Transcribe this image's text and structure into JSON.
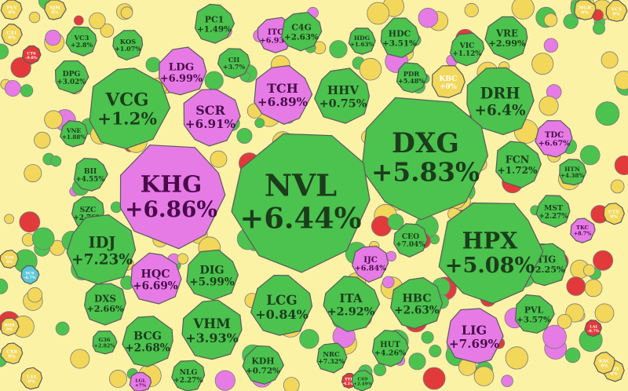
{
  "colors": {
    "background": "#fbf2a6",
    "up": "#4cc24f",
    "ceiling": "#e67be6",
    "flat": "#f2d75a",
    "down": "#e23a3a",
    "floor": "#5bc8d8",
    "text_up": "#1b3d1b",
    "text_ceiling": "#4a0a4a",
    "text_flat": "#ffffff"
  },
  "chart_data": {
    "type": "heatmap",
    "layout": "voronoi-treemap",
    "title": "",
    "legend": "none",
    "cells": [
      {
        "symbol": "NVL",
        "change": "+6.44%",
        "value": 6.44,
        "status": "up"
      },
      {
        "symbol": "DXG",
        "change": "+5.83%",
        "value": 5.83,
        "status": "up"
      },
      {
        "symbol": "KHG",
        "change": "+6.86%",
        "value": 6.86,
        "status": "ceiling"
      },
      {
        "symbol": "HPX",
        "change": "+5.08%",
        "value": 5.08,
        "status": "up"
      },
      {
        "symbol": "VCG",
        "change": "+1.2%",
        "value": 1.2,
        "status": "up"
      },
      {
        "symbol": "DRH",
        "change": "+6.4%",
        "value": 6.4,
        "status": "up"
      },
      {
        "symbol": "IDJ",
        "change": "+7.23%",
        "value": 7.23,
        "status": "up"
      },
      {
        "symbol": "LCG",
        "change": "+0.84%",
        "value": 0.84,
        "status": "up"
      },
      {
        "symbol": "VHM",
        "change": "+3.93%",
        "value": 3.93,
        "status": "up"
      },
      {
        "symbol": "DIG",
        "change": "+5.99%",
        "value": 5.99,
        "status": "up"
      },
      {
        "symbol": "HQC",
        "change": "+6.69%",
        "value": 6.69,
        "status": "ceiling"
      },
      {
        "symbol": "SCR",
        "change": "+6.91%",
        "value": 6.91,
        "status": "ceiling"
      },
      {
        "symbol": "TCH",
        "change": "+6.89%",
        "value": 6.89,
        "status": "ceiling"
      },
      {
        "symbol": "LDG",
        "change": "+6.99%",
        "value": 6.99,
        "status": "ceiling"
      },
      {
        "symbol": "HHV",
        "change": "+0.75%",
        "value": 0.75,
        "status": "up"
      },
      {
        "symbol": "LIG",
        "change": "+7.69%",
        "value": 7.69,
        "status": "ceiling"
      },
      {
        "symbol": "ITA",
        "change": "+2.92%",
        "value": 2.92,
        "status": "up"
      },
      {
        "symbol": "HBC",
        "change": "+2.63%",
        "value": 2.63,
        "status": "up"
      },
      {
        "symbol": "BCG",
        "change": "+2.68%",
        "value": 2.68,
        "status": "up"
      },
      {
        "symbol": "FCN",
        "change": "+1.72%",
        "value": 1.72,
        "status": "up"
      },
      {
        "symbol": "TIG",
        "change": "+2.25%",
        "value": 2.25,
        "status": "up"
      },
      {
        "symbol": "DXS",
        "change": "+2.66%",
        "value": 2.66,
        "status": "up"
      },
      {
        "symbol": "KDH",
        "change": "+0.72%",
        "value": 0.72,
        "status": "up"
      },
      {
        "symbol": "PVL",
        "change": "+3.57%",
        "value": 3.57,
        "status": "up"
      },
      {
        "symbol": "HUT",
        "change": "+4.26%",
        "value": 4.26,
        "status": "up"
      },
      {
        "symbol": "VRE",
        "change": "+2.99%",
        "value": 2.99,
        "status": "up"
      },
      {
        "symbol": "C4G",
        "change": "+2.63%",
        "value": 2.63,
        "status": "up"
      },
      {
        "symbol": "PC1",
        "change": "+1.49%",
        "value": 1.49,
        "status": "up"
      },
      {
        "symbol": "HDC",
        "change": "+3.51%",
        "value": 3.51,
        "status": "up"
      },
      {
        "symbol": "TDC",
        "change": "+6.67%",
        "value": 6.67,
        "status": "ceiling"
      },
      {
        "symbol": "IJC",
        "change": "+6.84%",
        "value": 6.84,
        "status": "ceiling"
      },
      {
        "symbol": "CEO",
        "change": "+7.04%",
        "value": 7.04,
        "status": "up"
      },
      {
        "symbol": "ITC",
        "change": "+6.93%",
        "value": 6.93,
        "status": "ceiling"
      },
      {
        "symbol": "KBC",
        "change": "+0%",
        "value": 0,
        "status": "flat"
      },
      {
        "symbol": "MST",
        "change": "+2.27%",
        "value": 2.27,
        "status": "up"
      },
      {
        "symbol": "NLG",
        "change": "+2.27%",
        "value": 2.27,
        "status": "up"
      },
      {
        "symbol": "SZC",
        "change": "+2.76%",
        "value": 2.76,
        "status": "up"
      },
      {
        "symbol": "BII",
        "change": "+4.55%",
        "value": 4.55,
        "status": "up"
      },
      {
        "symbol": "DPG",
        "change": "+3.02%",
        "value": 3.02,
        "status": "up"
      },
      {
        "symbol": "VC3",
        "change": "+2.8%",
        "value": 2.8,
        "status": "up"
      },
      {
        "symbol": "KOS",
        "change": "+1.07%",
        "value": 1.07,
        "status": "up"
      },
      {
        "symbol": "CII",
        "change": "+3.7%",
        "value": 3.7,
        "status": "up"
      },
      {
        "symbol": "VIC",
        "change": "+1.12%",
        "value": 1.12,
        "status": "up"
      },
      {
        "symbol": "PDR",
        "change": "+5.48%",
        "value": 5.48,
        "status": "up"
      },
      {
        "symbol": "HTN",
        "change": "+4.38%",
        "value": 4.38,
        "status": "up"
      },
      {
        "symbol": "VNE",
        "change": "+1.88%",
        "value": 1.88,
        "status": "up"
      },
      {
        "symbol": "TKC",
        "change": "+8.7%",
        "value": 8.7,
        "status": "ceiling"
      },
      {
        "symbol": "NRC",
        "change": "+7.32%",
        "value": 7.32,
        "status": "up"
      },
      {
        "symbol": "G36",
        "change": "+2.82%",
        "value": 2.82,
        "status": "up"
      },
      {
        "symbol": "HDG",
        "change": "+1.63%",
        "value": 1.63,
        "status": "up"
      },
      {
        "symbol": "LGL",
        "change": "+7%",
        "value": 7,
        "status": "ceiling"
      },
      {
        "symbol": "C69",
        "change": "+2.49%",
        "value": 2.49,
        "status": "up"
      },
      {
        "symbol": "TTH",
        "change": "-4.14%",
        "value": -4.14,
        "status": "down"
      },
      {
        "symbol": "C21",
        "change": "0%",
        "value": 0,
        "status": "flat"
      },
      {
        "symbol": "PVV",
        "change": "0%",
        "value": 0,
        "status": "flat"
      },
      {
        "symbol": "SJM",
        "change": "0%",
        "value": 0,
        "status": "flat"
      },
      {
        "symbol": "MGR",
        "change": "0%",
        "value": 0,
        "status": "flat"
      },
      {
        "symbol": "VC5",
        "change": "0%",
        "value": 0,
        "status": "flat"
      },
      {
        "symbol": "E29",
        "change": "0%",
        "value": 0,
        "status": "flat"
      },
      {
        "symbol": "CX8",
        "change": "0%",
        "value": 0,
        "status": "flat"
      },
      {
        "symbol": "L44",
        "change": "0%",
        "value": 0,
        "status": "flat"
      },
      {
        "symbol": "CTX",
        "change": "0%",
        "value": 0,
        "status": "flat"
      },
      {
        "symbol": "SDX",
        "change": "0%",
        "value": 0,
        "status": "flat"
      },
      {
        "symbol": "HHR",
        "change": "0%",
        "value": 0,
        "status": "flat"
      },
      {
        "symbol": "KAC",
        "change": "0%",
        "value": 0,
        "status": "flat"
      },
      {
        "symbol": "CT6",
        "change": "-9.8%",
        "value": -9.8,
        "status": "down"
      },
      {
        "symbol": "LAI",
        "change": "-8.7%",
        "value": -8.7,
        "status": "down"
      },
      {
        "symbol": "SCS",
        "change": "-6.7%",
        "value": -6.7,
        "status": "floor"
      }
    ]
  }
}
